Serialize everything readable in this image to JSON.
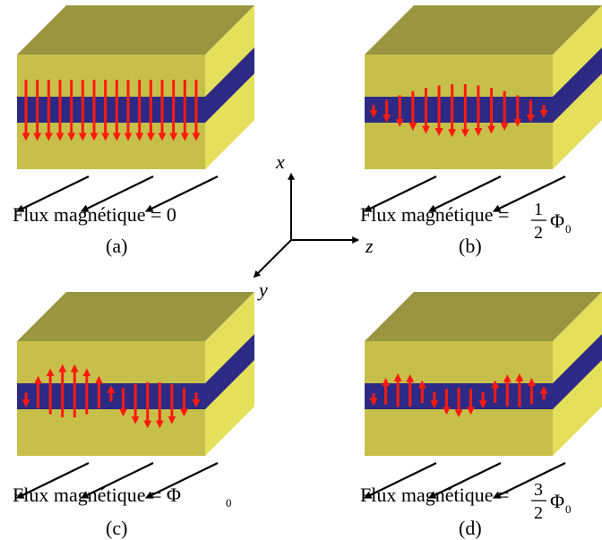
{
  "colors": {
    "front_face": "#c6c04a",
    "top_face": "#999540",
    "side_face": "#e4e05c",
    "junction_band": "#2c2a84",
    "arrow_red": "#ff1a0f",
    "arrow_black": "#000000",
    "background": "#ffffff"
  },
  "axes": {
    "x": "x",
    "y": "y",
    "z": "z"
  },
  "panels": [
    {
      "id": "a",
      "label": "(a)",
      "flux_prefix": "Flux magnétique = ",
      "flux_value": "0",
      "arrow_pattern": "uniform-down"
    },
    {
      "id": "b",
      "label": "(b)",
      "flux_prefix": "Flux magnétique = ",
      "flux_numerator": "1",
      "flux_denominator": "2",
      "flux_symbol": "Φ",
      "flux_subscript": "0",
      "arrow_pattern": "half-period"
    },
    {
      "id": "c",
      "label": "(c)",
      "flux_prefix": "Flux magnétique = ",
      "flux_symbol": "Φ",
      "flux_subscript": "0",
      "arrow_pattern": "full-period"
    },
    {
      "id": "d",
      "label": "(d)",
      "flux_prefix": "Flux magnétique = ",
      "flux_numerator": "3",
      "flux_denominator": "2",
      "flux_symbol": "Φ",
      "flux_subscript": "0",
      "arrow_pattern": "three-half-period"
    }
  ]
}
